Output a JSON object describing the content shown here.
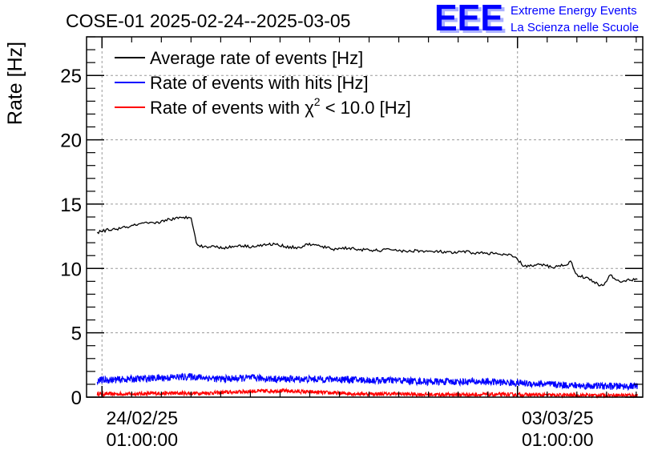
{
  "chart_data": {
    "type": "line",
    "title": "COSE-01 2025-02-24--2025-03-05",
    "xlabel": "",
    "ylabel": "Rate [Hz]",
    "ylim": [
      0,
      28
    ],
    "yticks": [
      0,
      5,
      10,
      15,
      20,
      25
    ],
    "x_unit": "days since 24/02/25 01:00:00",
    "xlim": [
      -0.26,
      9.11
    ],
    "xticks": [
      {
        "value": 0,
        "date": "24/02/25",
        "time": "01:00:00"
      },
      {
        "value": 7,
        "date": "03/03/25",
        "time": "01:00:00"
      }
    ],
    "grid": true,
    "legend_position": "top-left",
    "series": [
      {
        "name": "Average rate of events [Hz]",
        "color": "#000000",
        "x": [
          -0.08,
          0.1,
          0.3,
          0.5,
          0.7,
          0.9,
          1.1,
          1.3,
          1.5,
          1.55,
          1.6,
          1.7,
          1.9,
          2.1,
          2.3,
          2.5,
          2.7,
          2.9,
          3.1,
          3.3,
          3.5,
          3.7,
          3.9,
          4.1,
          4.3,
          4.5,
          4.7,
          4.9,
          5.1,
          5.3,
          5.5,
          5.7,
          5.9,
          6.1,
          6.3,
          6.5,
          6.7,
          6.9,
          7.0,
          7.1,
          7.25,
          7.4,
          7.6,
          7.8,
          7.9,
          8.0,
          8.2,
          8.35,
          8.45,
          8.55,
          8.7,
          8.9,
          9.02
        ],
        "values": [
          12.8,
          13.0,
          13.1,
          13.3,
          13.5,
          13.5,
          13.8,
          13.9,
          14.0,
          13.0,
          11.8,
          11.7,
          11.7,
          11.6,
          11.8,
          11.7,
          11.8,
          11.9,
          11.7,
          11.6,
          11.9,
          11.7,
          11.5,
          11.6,
          11.5,
          11.4,
          11.4,
          11.5,
          11.3,
          11.4,
          11.3,
          11.3,
          11.2,
          11.3,
          11.2,
          11.2,
          11.1,
          11.0,
          10.7,
          10.2,
          10.2,
          10.3,
          10.1,
          10.3,
          10.5,
          9.5,
          9.2,
          8.8,
          8.6,
          9.5,
          9.0,
          9.1,
          9.2
        ]
      },
      {
        "name": "Rate of events with hits [Hz]",
        "color": "#0000ff",
        "x": [
          -0.08,
          0.5,
          1.0,
          1.5,
          2.0,
          2.5,
          3.0,
          3.5,
          4.0,
          4.5,
          5.0,
          5.5,
          6.0,
          6.5,
          7.0,
          7.5,
          8.0,
          8.5,
          9.02
        ],
        "values": [
          1.3,
          1.4,
          1.5,
          1.6,
          1.4,
          1.5,
          1.4,
          1.4,
          1.4,
          1.3,
          1.3,
          1.2,
          1.2,
          1.2,
          1.1,
          1.0,
          0.9,
          0.85,
          0.85
        ]
      },
      {
        "name": "Rate of events with χ² < 10.0 [Hz]",
        "color": "#ff0000",
        "x": [
          -0.08,
          0.5,
          1.0,
          1.5,
          2.0,
          2.5,
          3.0,
          3.5,
          4.0,
          4.5,
          5.0,
          5.5,
          6.0,
          6.5,
          7.0,
          7.5,
          8.0,
          8.5,
          9.02
        ],
        "values": [
          0.25,
          0.25,
          0.3,
          0.3,
          0.35,
          0.45,
          0.5,
          0.4,
          0.3,
          0.25,
          0.25,
          0.2,
          0.2,
          0.2,
          0.2,
          0.15,
          0.15,
          0.15,
          0.15
        ]
      }
    ]
  },
  "legend": {
    "entries": [
      {
        "text": "Average rate of events [Hz]"
      },
      {
        "text": "Rate of events with hits [Hz]"
      },
      {
        "prefix": "Rate of events with ",
        "greek": "χ",
        "sup": "2",
        "suffix": " < 10.0 [Hz]"
      }
    ]
  },
  "logo": {
    "mark": "EEE",
    "line1": "Extreme Energy Events",
    "line2": "La Scienza nelle Scuole",
    "color": "#0000ff"
  }
}
